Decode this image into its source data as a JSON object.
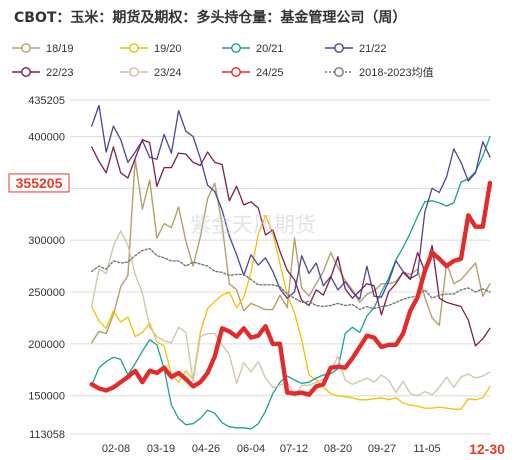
{
  "chart_data": {
    "type": "line",
    "title": "CBOT：玉米：期货及期权：多头持仓量：基金管理公司（周）",
    "watermark": "紫金天风期货",
    "x_labels": [
      "02-08",
      "03-19",
      "04-26",
      "06-04",
      "07-12",
      "08-20",
      "09-27",
      "11-05"
    ],
    "x_end_label": "12-30",
    "ylim": [
      113058,
      435205
    ],
    "y_ticks": [
      113058,
      150000,
      200000,
      250000,
      300000,
      350000,
      400000,
      435205
    ],
    "current_value": 355205,
    "current_value_label": "355205",
    "current_value_color": "#e8392c",
    "grid": true,
    "legend_position": "top",
    "series": [
      {
        "name": "18/19",
        "color": "#b5a06a",
        "width": 1.4,
        "dash": "",
        "marker": "circle-open",
        "values": [
          null,
          null,
          null,
          201000,
          212000,
          210000,
          228000,
          255000,
          266000,
          378000,
          330000,
          358000,
          302000,
          316000,
          312000,
          332000,
          299000,
          275000,
          303000,
          340000,
          355000,
          315000,
          258000,
          252000,
          232000,
          239000,
          236000,
          233000,
          233000,
          247000,
          235000,
          302000,
          254000,
          246000,
          258000,
          270000,
          288000,
          274000,
          261000,
          252000,
          240000,
          248000,
          251000,
          258000,
          258000,
          260000,
          269000,
          267000,
          272000,
          245000,
          225000,
          218000,
          278000,
          258000,
          262000,
          270000,
          278000,
          246000,
          258000
        ]
      },
      {
        "name": "19/20",
        "color": "#f3c100",
        "width": 1.3,
        "dash": "",
        "marker": "none",
        "values": [
          null,
          null,
          null,
          236000,
          222000,
          215000,
          232000,
          221000,
          226000,
          207000,
          211000,
          220000,
          202000,
          198000,
          171000,
          163000,
          174000,
          166000,
          211000,
          234000,
          241000,
          247000,
          250000,
          235000,
          245000,
          269000,
          306000,
          324000,
          307000,
          277000,
          248000,
          230000,
          204000,
          170000,
          165000,
          158000,
          152000,
          150000,
          149000,
          148000,
          146000,
          146000,
          147000,
          148000,
          146000,
          148000,
          143000,
          141000,
          140000,
          138000,
          138000,
          139000,
          138000,
          137000,
          137000,
          147000,
          146000,
          148000,
          159000
        ]
      },
      {
        "name": "20/21",
        "color": "#1aa19a",
        "width": 1.3,
        "dash": "",
        "marker": "none",
        "values": [
          null,
          null,
          null,
          160000,
          177000,
          183000,
          187000,
          185000,
          170000,
          181000,
          193000,
          204000,
          199000,
          176000,
          141000,
          128000,
          122000,
          123000,
          128000,
          136000,
          133000,
          124000,
          120000,
          119000,
          119000,
          118000,
          123000,
          135000,
          152000,
          163000,
          169000,
          165000,
          162000,
          163000,
          167000,
          170000,
          171000,
          176000,
          210000,
          216000,
          211000,
          227000,
          235000,
          250000,
          263000,
          281000,
          293000,
          307000,
          323000,
          337000,
          338000,
          336000,
          333000,
          336000,
          356000,
          359000,
          366000,
          381000,
          400000
        ]
      },
      {
        "name": "21/22",
        "color": "#4a479a",
        "width": 1.3,
        "dash": "",
        "marker": "none",
        "values": [
          null,
          null,
          null,
          410000,
          430000,
          385000,
          410000,
          397000,
          375000,
          385000,
          396000,
          380000,
          378000,
          402000,
          384000,
          425000,
          405000,
          400000,
          379000,
          353000,
          347000,
          329000,
          304000,
          286000,
          266000,
          286000,
          276000,
          283000,
          270000,
          253000,
          244000,
          250000,
          285000,
          268000,
          278000,
          256000,
          265000,
          252000,
          260000,
          250000,
          243000,
          275000,
          246000,
          245000,
          260000,
          280000,
          270000,
          263000,
          267000,
          327000,
          350000,
          346000,
          361000,
          388000,
          375000,
          357000,
          365000,
          395000,
          380000
        ]
      },
      {
        "name": "22/23",
        "color": "#7e1f4e",
        "width": 1.3,
        "dash": "",
        "marker": "none",
        "values": [
          null,
          null,
          null,
          390000,
          376000,
          365000,
          390000,
          365000,
          360000,
          379000,
          397000,
          394000,
          352000,
          370000,
          370000,
          384000,
          383000,
          375000,
          372000,
          385000,
          375000,
          373000,
          338000,
          352000,
          334000,
          337000,
          331000,
          305000,
          310000,
          289000,
          271000,
          262000,
          242000,
          237000,
          252000,
          247000,
          264000,
          284000,
          253000,
          244000,
          251000,
          258000,
          256000,
          228000,
          250000,
          258000,
          269000,
          262000,
          288000,
          270000,
          295000,
          244000,
          240000,
          238000,
          236000,
          223000,
          198000,
          205000,
          215000
        ]
      },
      {
        "name": "23/24",
        "color": "#cfc3a8",
        "width": 1.3,
        "dash": "",
        "marker": "none",
        "values": [
          null,
          null,
          null,
          236000,
          272000,
          268000,
          294000,
          309000,
          295000,
          267000,
          249000,
          216000,
          207000,
          203000,
          201000,
          216000,
          211000,
          164000,
          207000,
          210000,
          210000,
          199000,
          190000,
          162000,
          182000,
          173000,
          183000,
          167000,
          158000,
          160000,
          163000,
          149000,
          160000,
          160000,
          163000,
          166000,
          174000,
          188000,
          165000,
          161000,
          164000,
          167000,
          163000,
          170000,
          165000,
          153000,
          164000,
          152000,
          150000,
          154000,
          151000,
          158000,
          168000,
          158000,
          168000,
          171000,
          167000,
          169000,
          173000
        ]
      },
      {
        "name": "24/25",
        "color": "#e32b2b",
        "width": 4.2,
        "dash": "",
        "marker": "none",
        "values": [
          null,
          null,
          null,
          161000,
          157000,
          155000,
          158000,
          163000,
          168000,
          174000,
          163000,
          174000,
          172000,
          177000,
          168000,
          172000,
          166000,
          159000,
          163000,
          172000,
          188000,
          215000,
          212000,
          207000,
          215000,
          206000,
          208000,
          217000,
          200000,
          200000,
          153000,
          152000,
          153000,
          151000,
          159000,
          161000,
          177000,
          178000,
          177000,
          186000,
          197000,
          208000,
          206000,
          197000,
          199000,
          199000,
          210000,
          232000,
          245000,
          270000,
          288000,
          282000,
          275000,
          280000,
          282000,
          324000,
          313000,
          313000,
          355205
        ]
      },
      {
        "name": "2018-2023均值",
        "color": "#777777",
        "width": 1.4,
        "dash": "2,2",
        "marker": "circle-open",
        "values": [
          null,
          null,
          null,
          270000,
          275000,
          272000,
          280000,
          278000,
          279000,
          285000,
          290000,
          292000,
          285000,
          283000,
          280000,
          280000,
          275000,
          279000,
          277000,
          275000,
          270000,
          269000,
          266000,
          267000,
          267000,
          262000,
          257000,
          257000,
          257000,
          255000,
          248000,
          244000,
          240000,
          241000,
          237000,
          236000,
          237000,
          239000,
          237000,
          238000,
          233000,
          236000,
          234000,
          236000,
          237000,
          240000,
          243000,
          245000,
          246000,
          252000,
          244000,
          247000,
          248000,
          248000,
          252000,
          254000,
          250000,
          253000,
          250000
        ]
      }
    ]
  }
}
